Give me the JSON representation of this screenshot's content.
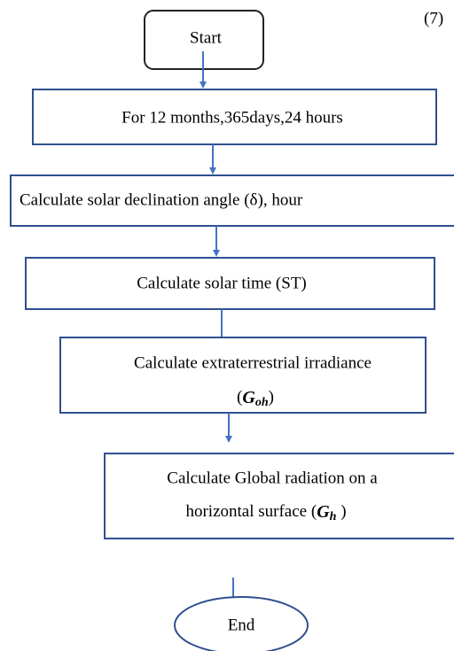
{
  "equation_number": "(7)",
  "nodes": [
    {
      "label": "Start"
    },
    {
      "label": "For 12 months,365days,24 hours"
    },
    {
      "label": "Calculate solar declination angle (δ), hour"
    },
    {
      "label": "Calculate solar time (ST)"
    },
    {
      "lines": [
        "Calculate extraterrestrial irradiance"
      ],
      "prefix": "(",
      "symbol": "G",
      "subscript": "oh",
      "suffix": ")"
    },
    {
      "lines": [
        "Calculate Global radiation on a"
      ],
      "prefix": "horizontal surface (",
      "symbol": "G",
      "subscript": "h",
      "suffix": " )"
    },
    {
      "label": "End"
    }
  ]
}
